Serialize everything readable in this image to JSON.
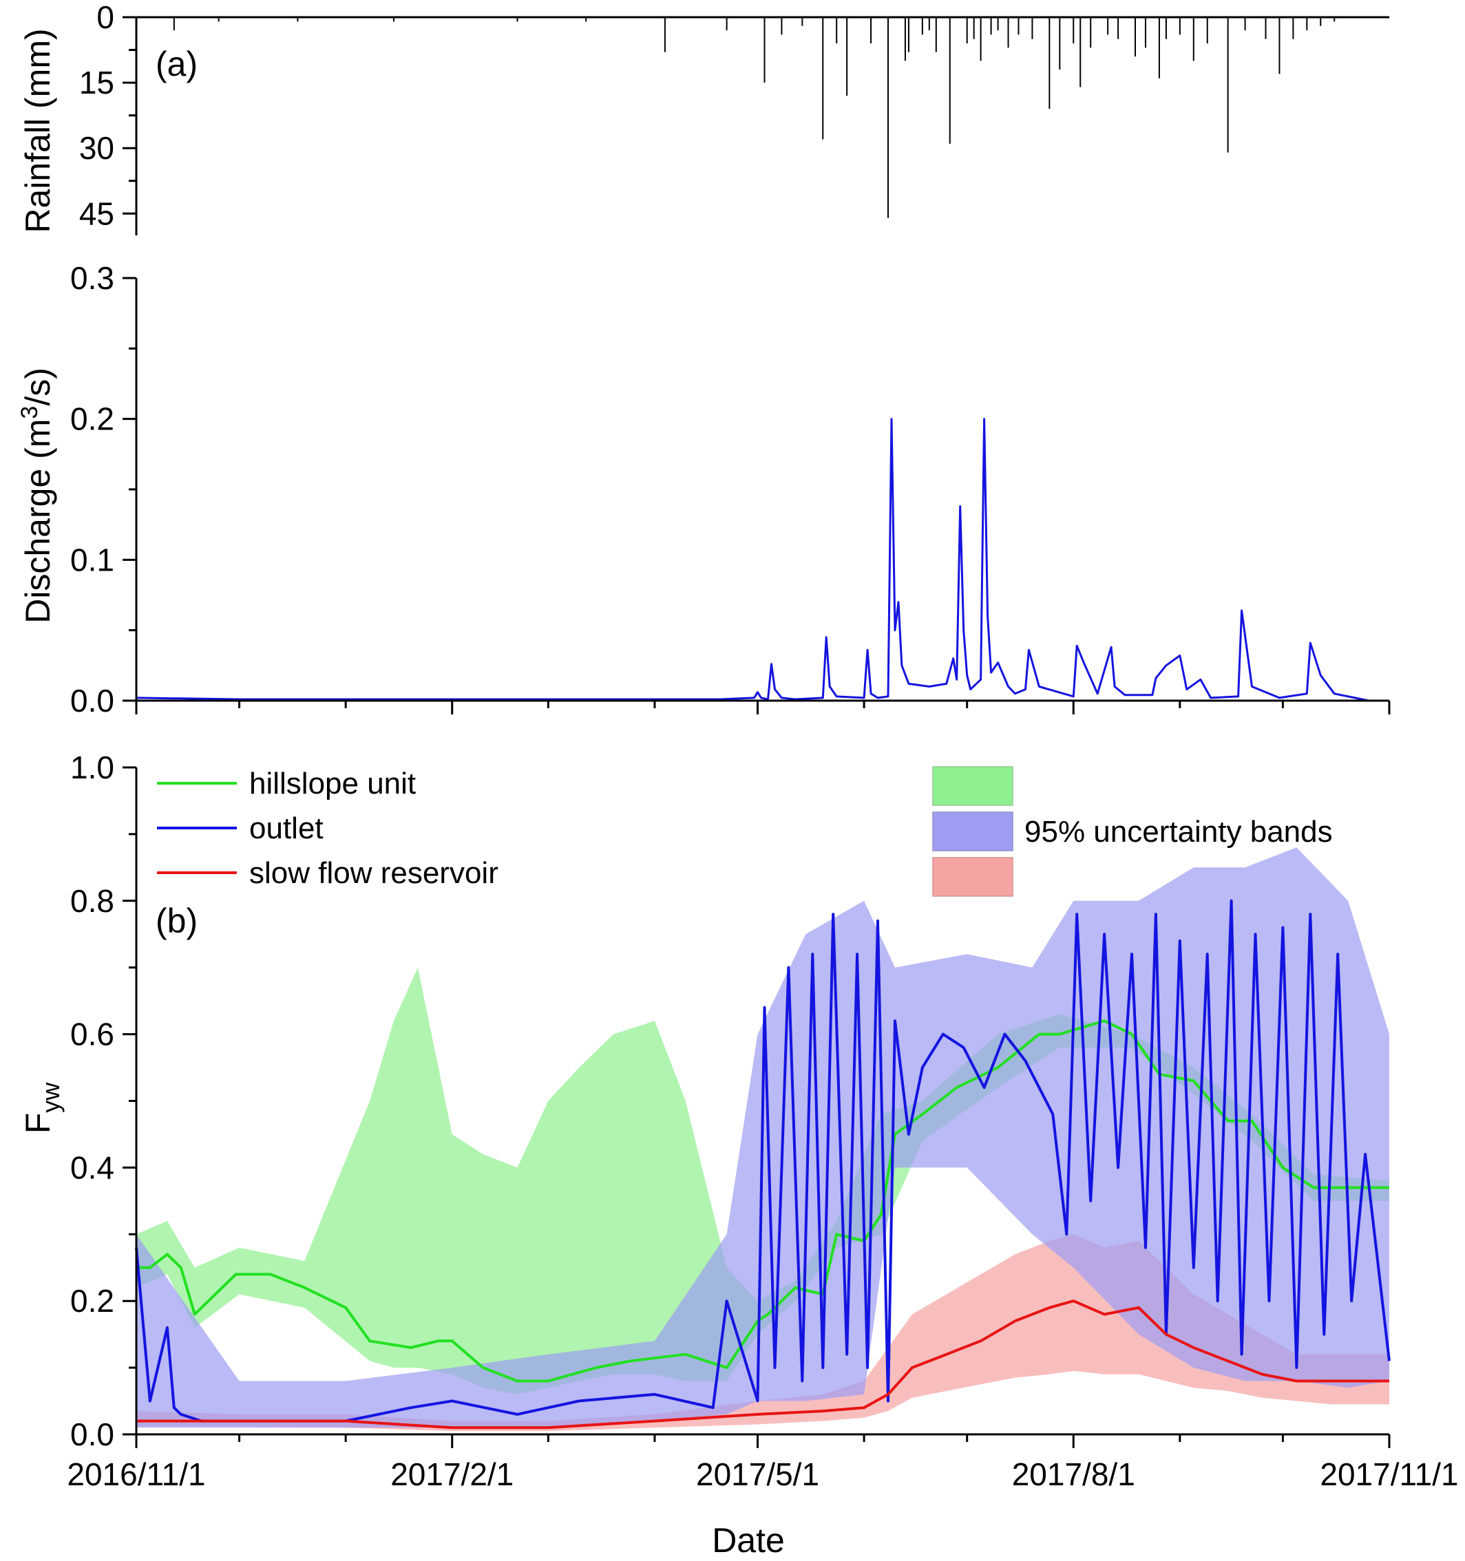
{
  "figure": {
    "xlabel": "Date",
    "x_tick_labels": [
      "2016/11/1",
      "2017/2/1",
      "2017/5/1",
      "2017/8/1",
      "2017/11/1"
    ]
  },
  "colors": {
    "hillslope": "#22e022",
    "outlet": "#1414e0",
    "slow": "#e81414",
    "band_hillslope": "#8ef08e",
    "band_outlet": "#9d9df2",
    "band_slow": "#f5a3a3",
    "rain": "#000000"
  },
  "chart_data": [
    {
      "panel": "rainfall",
      "type": "bar",
      "panel_label": "(a)",
      "xlabel": "",
      "ylabel": "Rainfall (mm)",
      "ylim": [
        0,
        50
      ],
      "inverted_y": true,
      "y_ticks": [
        0,
        15,
        30,
        45
      ],
      "xlim": [
        "2016-11-01",
        "2017-11-01"
      ],
      "x": [
        "2016-11-12",
        "2016-11-25",
        "2016-12-18",
        "2017-01-15",
        "2017-02-20",
        "2017-03-12",
        "2017-04-04",
        "2017-04-22",
        "2017-05-03",
        "2017-05-08",
        "2017-05-14",
        "2017-05-20",
        "2017-05-24",
        "2017-05-27",
        "2017-06-03",
        "2017-06-08",
        "2017-06-13",
        "2017-06-14",
        "2017-06-18",
        "2017-06-20",
        "2017-06-22",
        "2017-06-26",
        "2017-07-01",
        "2017-07-03",
        "2017-07-05",
        "2017-07-08",
        "2017-07-10",
        "2017-07-13",
        "2017-07-16",
        "2017-07-20",
        "2017-07-25",
        "2017-07-28",
        "2017-08-01",
        "2017-08-03",
        "2017-08-06",
        "2017-08-11",
        "2017-08-14",
        "2017-08-19",
        "2017-08-22",
        "2017-08-26",
        "2017-08-28",
        "2017-09-01",
        "2017-09-05",
        "2017-09-09",
        "2017-09-15",
        "2017-09-20",
        "2017-09-26",
        "2017-09-30",
        "2017-10-04",
        "2017-10-08",
        "2017-10-12",
        "2017-10-16"
      ],
      "values": [
        3,
        1,
        1,
        1,
        1,
        1,
        8,
        3,
        15,
        4,
        2,
        28,
        6,
        18,
        6,
        46,
        10,
        8,
        4,
        3,
        8,
        29,
        6,
        5,
        10,
        4,
        3,
        7,
        4,
        5,
        21,
        12,
        6,
        16,
        7,
        4,
        5,
        9,
        7,
        14,
        5,
        4,
        10,
        6,
        31,
        3,
        5,
        13,
        5,
        3,
        2,
        1
      ]
    },
    {
      "panel": "discharge",
      "type": "line",
      "xlabel": "",
      "ylabel_main": "Discharge (m",
      "ylabel_sup": "3",
      "ylabel_end": "/s)",
      "ylim": [
        0,
        0.3
      ],
      "y_ticks": [
        0.0,
        0.1,
        0.2,
        0.3
      ],
      "y_tick_labels": [
        "0.0",
        "0.1",
        "0.2",
        "0.3"
      ],
      "xlim": [
        "2016-11-01",
        "2017-11-01"
      ],
      "series": [
        {
          "x": [
            "2016-11-01",
            "2016-12-01",
            "2017-03-01",
            "2017-04-20",
            "2017-04-30",
            "2017-05-01",
            "2017-05-02",
            "2017-05-04",
            "2017-05-05",
            "2017-05-06",
            "2017-05-08",
            "2017-05-12",
            "2017-05-20",
            "2017-05-21",
            "2017-05-22",
            "2017-05-24",
            "2017-06-01",
            "2017-06-02",
            "2017-06-03",
            "2017-06-05",
            "2017-06-08",
            "2017-06-09",
            "2017-06-10",
            "2017-06-11",
            "2017-06-12",
            "2017-06-14",
            "2017-06-20",
            "2017-06-25",
            "2017-06-27",
            "2017-06-28",
            "2017-06-29",
            "2017-06-30",
            "2017-07-01",
            "2017-07-02",
            "2017-07-05",
            "2017-07-06",
            "2017-07-07",
            "2017-07-08",
            "2017-07-10",
            "2017-07-13",
            "2017-07-15",
            "2017-07-18",
            "2017-07-19",
            "2017-07-22",
            "2017-08-01",
            "2017-08-02",
            "2017-08-04",
            "2017-08-08",
            "2017-08-12",
            "2017-08-13",
            "2017-08-16",
            "2017-08-24",
            "2017-08-25",
            "2017-08-28",
            "2017-09-01",
            "2017-09-03",
            "2017-09-07",
            "2017-09-10",
            "2017-09-18",
            "2017-09-19",
            "2017-09-22",
            "2017-09-30",
            "2017-10-08",
            "2017-10-09",
            "2017-10-12",
            "2017-10-16",
            "2017-10-22",
            "2017-10-26"
          ],
          "values": [
            0.002,
            0.001,
            0.001,
            0.001,
            0.002,
            0.006,
            0.002,
            0.001,
            0.026,
            0.008,
            0.002,
            0.001,
            0.002,
            0.045,
            0.01,
            0.003,
            0.002,
            0.036,
            0.005,
            0.002,
            0.003,
            0.2,
            0.05,
            0.07,
            0.025,
            0.012,
            0.01,
            0.012,
            0.03,
            0.015,
            0.138,
            0.05,
            0.018,
            0.008,
            0.015,
            0.2,
            0.06,
            0.02,
            0.027,
            0.01,
            0.005,
            0.008,
            0.036,
            0.01,
            0.003,
            0.039,
            0.027,
            0.005,
            0.038,
            0.01,
            0.004,
            0.004,
            0.016,
            0.025,
            0.032,
            0.008,
            0.015,
            0.002,
            0.003,
            0.064,
            0.01,
            0.002,
            0.005,
            0.041,
            0.018,
            0.005,
            0.002,
            0.0
          ]
        }
      ]
    },
    {
      "panel": "fyw",
      "type": "line",
      "panel_label": "(b)",
      "xlabel": "",
      "ylabel": "F",
      "ylabel_sub": "yw",
      "ylim": [
        0,
        1.0
      ],
      "y_ticks": [
        0.0,
        0.2,
        0.4,
        0.6,
        0.8,
        1.0
      ],
      "y_tick_labels": [
        "0.0",
        "0.2",
        "0.4",
        "0.6",
        "0.8",
        "1.0"
      ],
      "xlim": [
        "2016-11-01",
        "2017-11-01"
      ],
      "legend_placement": "top-left",
      "band_legend_label": "95% uncertainty bands",
      "series": [
        {
          "name": "hillslope unit",
          "x": [
            "2016-11-01",
            "2016-11-05",
            "2016-11-10",
            "2016-11-14",
            "2016-11-18",
            "2016-11-30",
            "2016-12-10",
            "2016-12-20",
            "2017-01-01",
            "2017-01-08",
            "2017-01-20",
            "2017-01-28",
            "2017-02-01",
            "2017-02-10",
            "2017-02-20",
            "2017-03-01",
            "2017-03-15",
            "2017-03-25",
            "2017-04-10",
            "2017-04-22",
            "2017-05-01",
            "2017-05-04",
            "2017-05-12",
            "2017-05-20",
            "2017-05-24",
            "2017-06-01",
            "2017-06-06",
            "2017-06-10",
            "2017-06-18",
            "2017-06-28",
            "2017-07-10",
            "2017-07-22",
            "2017-07-28",
            "2017-08-10",
            "2017-08-18",
            "2017-08-26",
            "2017-09-05",
            "2017-09-15",
            "2017-09-22",
            "2017-10-01",
            "2017-10-10",
            "2017-10-20",
            "2017-11-01"
          ],
          "values": [
            0.25,
            0.25,
            0.27,
            0.25,
            0.18,
            0.24,
            0.24,
            0.22,
            0.19,
            0.14,
            0.13,
            0.14,
            0.14,
            0.1,
            0.08,
            0.08,
            0.1,
            0.11,
            0.12,
            0.1,
            0.17,
            0.18,
            0.22,
            0.21,
            0.3,
            0.29,
            0.33,
            0.45,
            0.48,
            0.52,
            0.55,
            0.6,
            0.6,
            0.62,
            0.6,
            0.54,
            0.53,
            0.47,
            0.47,
            0.4,
            0.37,
            0.37,
            0.37
          ]
        },
        {
          "name": "outlet",
          "x": [
            "2016-11-01",
            "2016-11-05",
            "2016-11-10",
            "2016-11-12",
            "2016-11-14",
            "2016-11-20",
            "2016-12-10",
            "2016-12-20",
            "2017-01-01",
            "2017-01-20",
            "2017-02-01",
            "2017-02-20",
            "2017-03-10",
            "2017-04-01",
            "2017-04-18",
            "2017-04-22",
            "2017-05-01",
            "2017-05-03",
            "2017-05-06",
            "2017-05-10",
            "2017-05-14",
            "2017-05-17",
            "2017-05-20",
            "2017-05-23",
            "2017-05-27",
            "2017-05-30",
            "2017-06-02",
            "2017-06-05",
            "2017-06-08",
            "2017-06-10",
            "2017-06-14",
            "2017-06-18",
            "2017-06-24",
            "2017-06-30",
            "2017-07-06",
            "2017-07-12",
            "2017-07-18",
            "2017-07-26",
            "2017-07-30",
            "2017-08-02",
            "2017-08-06",
            "2017-08-10",
            "2017-08-14",
            "2017-08-18",
            "2017-08-22",
            "2017-08-25",
            "2017-08-28",
            "2017-09-01",
            "2017-09-05",
            "2017-09-09",
            "2017-09-12",
            "2017-09-16",
            "2017-09-19",
            "2017-09-23",
            "2017-09-27",
            "2017-10-01",
            "2017-10-05",
            "2017-10-09",
            "2017-10-13",
            "2017-10-17",
            "2017-10-21",
            "2017-10-25",
            "2017-11-01"
          ],
          "values": [
            0.28,
            0.05,
            0.16,
            0.04,
            0.03,
            0.02,
            0.02,
            0.02,
            0.02,
            0.04,
            0.05,
            0.03,
            0.05,
            0.06,
            0.04,
            0.2,
            0.05,
            0.64,
            0.1,
            0.7,
            0.08,
            0.72,
            0.1,
            0.78,
            0.12,
            0.72,
            0.1,
            0.77,
            0.05,
            0.62,
            0.45,
            0.55,
            0.6,
            0.58,
            0.52,
            0.6,
            0.56,
            0.48,
            0.3,
            0.78,
            0.35,
            0.75,
            0.4,
            0.72,
            0.28,
            0.78,
            0.15,
            0.74,
            0.25,
            0.72,
            0.2,
            0.8,
            0.12,
            0.75,
            0.2,
            0.76,
            0.1,
            0.78,
            0.15,
            0.72,
            0.2,
            0.42,
            0.11
          ]
        },
        {
          "name": "slow flow reservoir",
          "x": [
            "2016-11-01",
            "2016-12-01",
            "2017-01-01",
            "2017-02-01",
            "2017-03-01",
            "2017-04-01",
            "2017-05-01",
            "2017-05-20",
            "2017-06-01",
            "2017-06-08",
            "2017-06-15",
            "2017-06-25",
            "2017-07-05",
            "2017-07-15",
            "2017-07-25",
            "2017-08-01",
            "2017-08-10",
            "2017-08-20",
            "2017-08-28",
            "2017-09-05",
            "2017-09-15",
            "2017-09-25",
            "2017-10-05",
            "2017-10-15",
            "2017-10-25",
            "2017-11-01"
          ],
          "values": [
            0.02,
            0.02,
            0.02,
            0.01,
            0.01,
            0.02,
            0.03,
            0.035,
            0.04,
            0.06,
            0.1,
            0.12,
            0.14,
            0.17,
            0.19,
            0.2,
            0.18,
            0.19,
            0.15,
            0.13,
            0.11,
            0.09,
            0.08,
            0.08,
            0.08,
            0.08
          ]
        }
      ],
      "bands": {
        "hillslope": {
          "x": [
            "2016-11-01",
            "2016-11-10",
            "2016-11-18",
            "2016-12-01",
            "2016-12-20",
            "2017-01-08",
            "2017-01-15",
            "2017-01-22",
            "2017-02-01",
            "2017-02-10",
            "2017-02-20",
            "2017-03-01",
            "2017-03-10",
            "2017-03-20",
            "2017-04-01",
            "2017-04-10",
            "2017-04-22",
            "2017-05-01",
            "2017-05-12",
            "2017-05-24",
            "2017-06-06",
            "2017-06-18",
            "2017-07-10",
            "2017-07-28",
            "2017-08-18",
            "2017-09-05",
            "2017-09-22",
            "2017-10-10",
            "2017-11-01"
          ],
          "upper": [
            0.3,
            0.32,
            0.25,
            0.28,
            0.26,
            0.5,
            0.62,
            0.7,
            0.45,
            0.42,
            0.4,
            0.5,
            0.55,
            0.6,
            0.62,
            0.5,
            0.25,
            0.2,
            0.23,
            0.32,
            0.48,
            0.5,
            0.6,
            0.63,
            0.6,
            0.55,
            0.48,
            0.39,
            0.38
          ],
          "lower": [
            0.22,
            0.24,
            0.16,
            0.21,
            0.19,
            0.11,
            0.1,
            0.1,
            0.09,
            0.07,
            0.06,
            0.07,
            0.08,
            0.09,
            0.09,
            0.08,
            0.08,
            0.15,
            0.2,
            0.28,
            0.3,
            0.44,
            0.52,
            0.58,
            0.58,
            0.51,
            0.44,
            0.35,
            0.35
          ]
        },
        "outlet": {
          "x": [
            "2016-11-01",
            "2016-12-01",
            "2017-01-01",
            "2017-02-01",
            "2017-03-01",
            "2017-04-01",
            "2017-04-22",
            "2017-05-01",
            "2017-05-15",
            "2017-06-01",
            "2017-06-10",
            "2017-07-01",
            "2017-07-20",
            "2017-08-01",
            "2017-08-20",
            "2017-09-05",
            "2017-09-20",
            "2017-10-05",
            "2017-10-20",
            "2017-11-01"
          ],
          "upper": [
            0.3,
            0.08,
            0.08,
            0.1,
            0.12,
            0.14,
            0.3,
            0.6,
            0.75,
            0.8,
            0.7,
            0.72,
            0.7,
            0.8,
            0.8,
            0.85,
            0.85,
            0.88,
            0.8,
            0.6
          ],
          "lower": [
            0.01,
            0.01,
            0.01,
            0.01,
            0.01,
            0.02,
            0.03,
            0.05,
            0.05,
            0.06,
            0.4,
            0.4,
            0.3,
            0.25,
            0.15,
            0.1,
            0.08,
            0.08,
            0.07,
            0.08
          ]
        },
        "slow": {
          "x": [
            "2016-11-01",
            "2016-12-01",
            "2017-01-01",
            "2017-02-01",
            "2017-03-01",
            "2017-04-01",
            "2017-05-01",
            "2017-05-20",
            "2017-06-01",
            "2017-06-08",
            "2017-06-15",
            "2017-06-25",
            "2017-07-05",
            "2017-07-15",
            "2017-07-25",
            "2017-08-01",
            "2017-08-10",
            "2017-08-20",
            "2017-08-28",
            "2017-09-05",
            "2017-09-15",
            "2017-09-25",
            "2017-10-05",
            "2017-10-15",
            "2017-10-25",
            "2017-11-01"
          ],
          "upper": [
            0.035,
            0.03,
            0.03,
            0.02,
            0.02,
            0.03,
            0.05,
            0.06,
            0.08,
            0.13,
            0.18,
            0.21,
            0.24,
            0.27,
            0.29,
            0.3,
            0.28,
            0.29,
            0.25,
            0.21,
            0.18,
            0.15,
            0.12,
            0.12,
            0.12,
            0.12
          ],
          "lower": [
            0.012,
            0.012,
            0.01,
            0.005,
            0.005,
            0.01,
            0.015,
            0.02,
            0.025,
            0.035,
            0.055,
            0.065,
            0.075,
            0.085,
            0.09,
            0.095,
            0.09,
            0.09,
            0.08,
            0.07,
            0.065,
            0.055,
            0.05,
            0.045,
            0.045,
            0.045
          ]
        }
      }
    }
  ]
}
